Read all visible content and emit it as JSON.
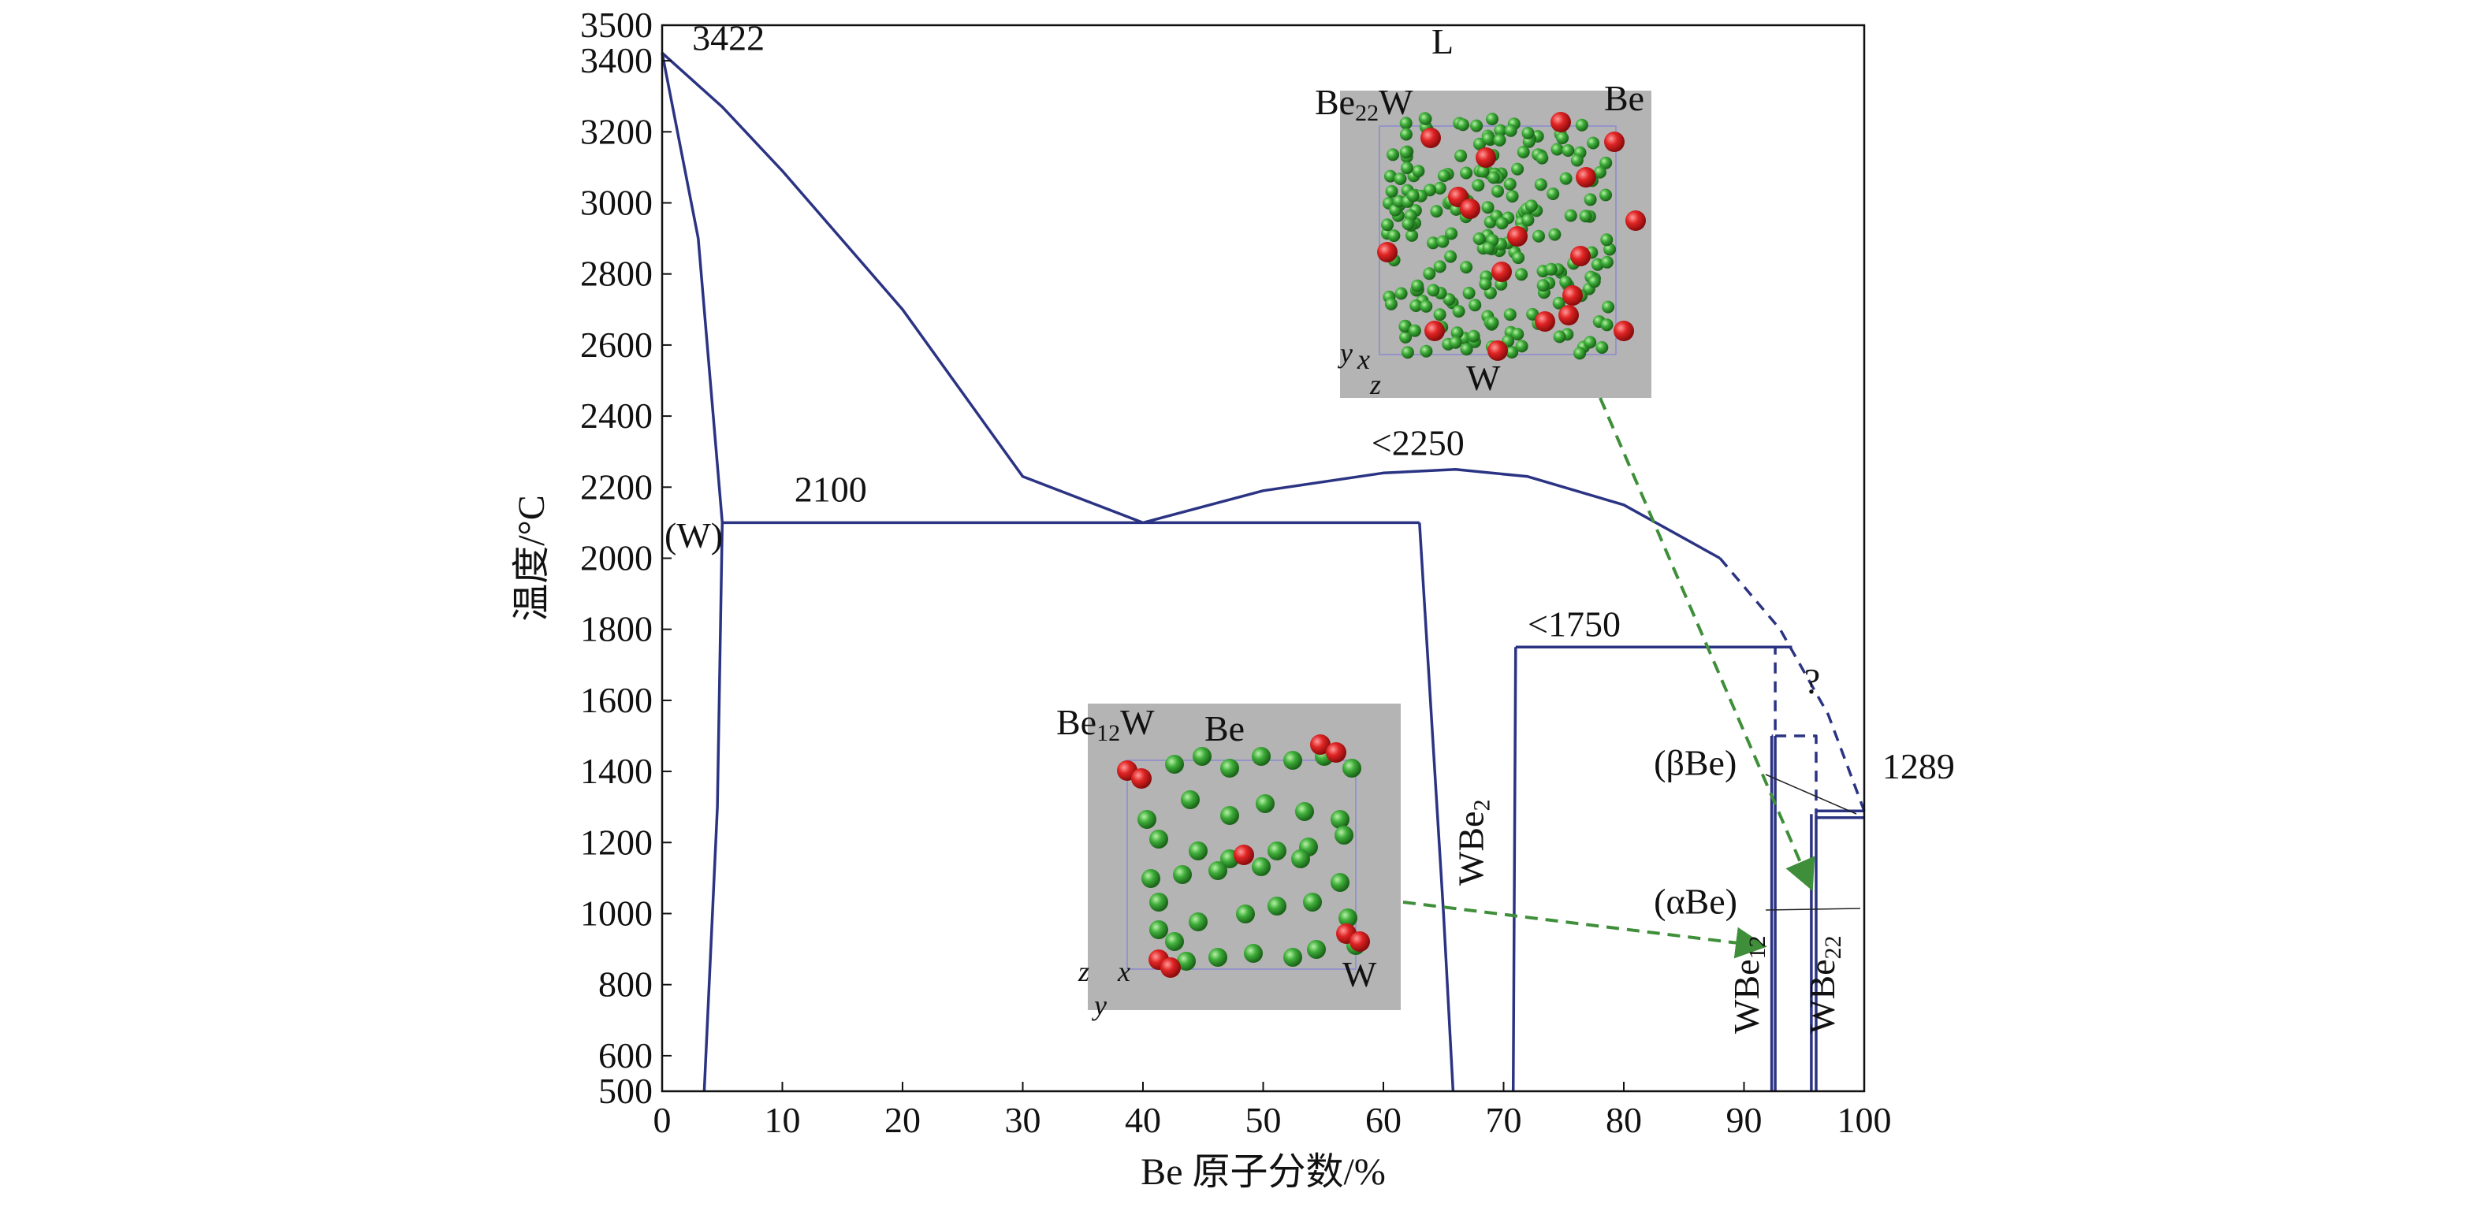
{
  "chart_data": {
    "type": "line",
    "title": "",
    "xlabel": "Be 原子分数/%",
    "ylabel": "温度/°C",
    "xlim": [
      0,
      100
    ],
    "ylim": [
      500,
      3500
    ],
    "xticks": [
      0,
      10,
      20,
      30,
      40,
      50,
      60,
      70,
      80,
      90,
      100
    ],
    "yticks": [
      500,
      600,
      800,
      1000,
      1200,
      1400,
      1600,
      1800,
      2000,
      2200,
      2400,
      2600,
      2800,
      3000,
      3200,
      3400,
      3500
    ],
    "colors": {
      "lines": "#2b3383",
      "arrow": "#3f8f3a",
      "inset_bg": "#b4b4b4",
      "atom_w": "#d8201f",
      "atom_be": "#3da33d"
    },
    "series": [
      {
        "name": "liquidus-W-side",
        "style": "solid",
        "x": [
          0,
          5,
          10,
          20,
          30,
          40
        ],
        "y": [
          3422,
          3270,
          3090,
          2700,
          2230,
          2100
        ]
      },
      {
        "name": "liquidus-Be-side",
        "style": "solid",
        "x": [
          40,
          50,
          60,
          66,
          72,
          80,
          88
        ],
        "y": [
          2100,
          2190,
          2240,
          2250,
          2230,
          2150,
          2000
        ]
      },
      {
        "name": "liquidus-Be-side-dashed",
        "style": "dashed",
        "x": [
          88,
          93,
          97,
          100
        ],
        "y": [
          2000,
          1800,
          1560,
          1289
        ]
      },
      {
        "name": "solidus-W",
        "style": "solid",
        "x": [
          0,
          3,
          5
        ],
        "y": [
          3422,
          2900,
          2100
        ]
      },
      {
        "name": "solvus-W",
        "style": "solid",
        "x": [
          5,
          4.6,
          3.5
        ],
        "y": [
          2100,
          1300,
          500
        ]
      },
      {
        "name": "eutectic-2100",
        "style": "solid",
        "x": [
          5,
          63
        ],
        "y": [
          2100,
          2100
        ]
      },
      {
        "name": "WBe2-left",
        "style": "solid",
        "x": [
          63,
          65,
          65.8
        ],
        "y": [
          2100,
          1000,
          500
        ]
      },
      {
        "name": "WBe2-right",
        "style": "solid",
        "x": [
          71,
          70.8
        ],
        "y": [
          1750,
          500
        ]
      },
      {
        "name": "peritectic-1750",
        "style": "solid",
        "x": [
          71,
          94
        ],
        "y": [
          1750,
          1750
        ]
      },
      {
        "name": "WBe12-left",
        "style": "solid",
        "x": [
          92.3,
          92.3
        ],
        "y": [
          1500,
          500
        ]
      },
      {
        "name": "WBe12-right",
        "style": "solid",
        "x": [
          92.6,
          92.6
        ],
        "y": [
          1500,
          500
        ]
      },
      {
        "name": "WBe12-top-dashed",
        "style": "dashed",
        "x": [
          92.3,
          92.6,
          92.6,
          92.3
        ],
        "y": [
          1750,
          1750,
          1500,
          1500
        ]
      },
      {
        "name": "WBe22-dashed-box",
        "style": "dashed",
        "x": [
          92.6,
          96,
          96
        ],
        "y": [
          1500,
          1500,
          1280
        ]
      },
      {
        "name": "WBe22-left",
        "style": "solid",
        "x": [
          95.6,
          95.6
        ],
        "y": [
          1280,
          500
        ]
      },
      {
        "name": "WBe22-right",
        "style": "solid",
        "x": [
          96,
          96
        ],
        "y": [
          1280,
          500
        ]
      },
      {
        "name": "line-1289",
        "style": "solid",
        "x": [
          96,
          100
        ],
        "y": [
          1289,
          1289
        ]
      },
      {
        "name": "line-1270",
        "style": "solid",
        "x": [
          96,
          100
        ],
        "y": [
          1270,
          1270
        ]
      }
    ],
    "annotations": [
      {
        "text": "3422",
        "x": 2.5,
        "y": 3430
      },
      {
        "text": "2100",
        "x": 11,
        "y": 2160
      },
      {
        "text": "<2250",
        "x": 59,
        "y": 2290
      },
      {
        "text": "<1750",
        "x": 72,
        "y": 1780
      },
      {
        "text": "1289",
        "x": 101.5,
        "y": 1380
      },
      {
        "text": "(W)",
        "x": 0.2,
        "y": 2030
      },
      {
        "text": "L",
        "x": 64,
        "y": 3420
      },
      {
        "text": "(βBe)",
        "x": 82.5,
        "y": 1390
      },
      {
        "text": "(αBe)",
        "x": 82.5,
        "y": 1000
      },
      {
        "text": "?",
        "x": 95,
        "y": 1620
      },
      {
        "text": "WBe2",
        "x": 68.3,
        "y": 1200,
        "rotated": true
      },
      {
        "text": "WBe12",
        "x": 91.2,
        "y": 800,
        "rotated": true
      },
      {
        "text": "WBe22",
        "x": 97.5,
        "y": 800,
        "rotated": true
      }
    ],
    "insets": [
      {
        "name": "Be22W",
        "title_text": "Be22W",
        "elements": [
          "Be",
          "W"
        ],
        "axes": [
          "y",
          "x",
          "z"
        ]
      },
      {
        "name": "Be12W",
        "title_text": "Be12W",
        "elements": [
          "Be",
          "W"
        ],
        "axes": [
          "z",
          "x",
          "y"
        ]
      }
    ]
  }
}
